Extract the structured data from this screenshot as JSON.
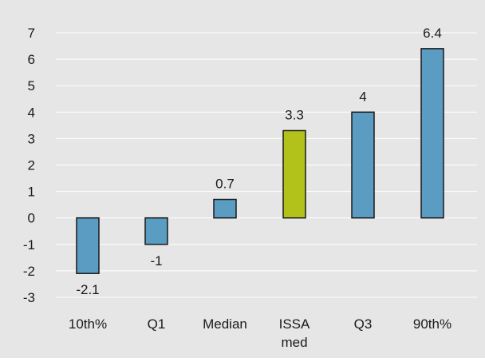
{
  "chart_data": {
    "type": "bar",
    "categories": [
      "10th%",
      "Q1",
      "Median",
      "ISSA med",
      "Q3",
      "90th%"
    ],
    "values": [
      -2.1,
      -1,
      0.7,
      3.3,
      4,
      6.4
    ],
    "data_labels": [
      "-2.1",
      "-1",
      "0.7",
      "3.3",
      "4",
      "6.4"
    ],
    "ylim": [
      -3,
      7
    ],
    "yticks": [
      7,
      6,
      5,
      4,
      3,
      2,
      1,
      0,
      -1,
      -2,
      -3
    ],
    "grid": true,
    "legend": "none",
    "colors": {
      "background": "#e6e6e6",
      "bar": "#5a9cc2",
      "highlight_bar": "#b3c21a",
      "bar_stroke": "#1a1a1a",
      "grid": "#ffffff",
      "text": "#1a1a1a"
    },
    "highlight_category": "ISSA med"
  }
}
